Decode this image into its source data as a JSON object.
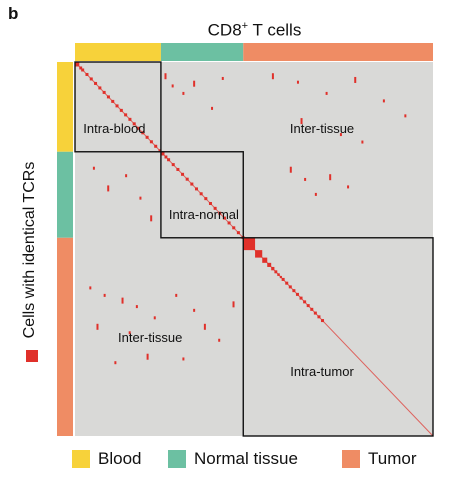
{
  "panel_letter": "b",
  "title_main": "CD8",
  "title_sup": "+",
  "title_rest": " T cells",
  "side_label": "Cells with identical TCRs",
  "colors": {
    "blood": "#f7d23a",
    "normal": "#6cc0a2",
    "tumor": "#ef8c64",
    "matrix_bg": "#d9d9d7",
    "clone": "#e0302a",
    "box": "#111111"
  },
  "legend": [
    {
      "label": "Blood",
      "color": "#f7d23a"
    },
    {
      "label": "Normal tissue",
      "color": "#6cc0a2"
    },
    {
      "label": "Tumor",
      "color": "#ef8c64"
    }
  ],
  "chart_data": {
    "type": "heatmap",
    "description_units": "fraction of total cells along each axis",
    "groups": [
      {
        "name": "Blood",
        "start": 0.0,
        "end": 0.24
      },
      {
        "name": "Normal tissue",
        "start": 0.24,
        "end": 0.47
      },
      {
        "name": "Tumor",
        "start": 0.47,
        "end": 1.0
      }
    ],
    "region_labels": [
      {
        "text": "Intra-blood",
        "x": 0.11,
        "y": 0.18
      },
      {
        "text": "Intra-normal",
        "x": 0.36,
        "y": 0.41
      },
      {
        "text": "Intra-tumor",
        "x": 0.69,
        "y": 0.83
      },
      {
        "text": "Inter-tissue",
        "x": 0.69,
        "y": 0.18
      },
      {
        "text": "Inter-tissue",
        "x": 0.21,
        "y": 0.74
      }
    ],
    "boxes": [
      {
        "from": 0.0,
        "to": 0.24
      },
      {
        "from": 0.24,
        "to": 0.47
      },
      {
        "from": 0.47,
        "to": 1.0
      }
    ],
    "large_clones": [
      {
        "pos": 0.0,
        "size": 0.012
      },
      {
        "pos": 0.012,
        "size": 0.008
      },
      {
        "pos": 0.24,
        "size": 0.01
      },
      {
        "pos": 0.25,
        "size": 0.008
      },
      {
        "pos": 0.47,
        "size": 0.033
      },
      {
        "pos": 0.503,
        "size": 0.02
      },
      {
        "pos": 0.523,
        "size": 0.014
      },
      {
        "pos": 0.537,
        "size": 0.011
      },
      {
        "pos": 0.548,
        "size": 0.009
      },
      {
        "pos": 0.557,
        "size": 0.008
      },
      {
        "pos": 0.565,
        "size": 0.007
      },
      {
        "pos": 0.572,
        "size": 0.006
      }
    ],
    "shared_clones": [
      [
        0.25,
        0.03
      ],
      [
        0.27,
        0.06
      ],
      [
        0.3,
        0.08
      ],
      [
        0.33,
        0.05
      ],
      [
        0.38,
        0.12
      ],
      [
        0.41,
        0.04
      ],
      [
        0.55,
        0.03
      ],
      [
        0.62,
        0.05
      ],
      [
        0.7,
        0.08
      ],
      [
        0.78,
        0.04
      ],
      [
        0.86,
        0.1
      ],
      [
        0.92,
        0.14
      ],
      [
        0.63,
        0.15
      ],
      [
        0.74,
        0.19
      ],
      [
        0.8,
        0.21
      ],
      [
        0.6,
        0.28
      ],
      [
        0.64,
        0.31
      ],
      [
        0.67,
        0.35
      ],
      [
        0.71,
        0.3
      ],
      [
        0.76,
        0.33
      ],
      [
        0.05,
        0.28
      ],
      [
        0.09,
        0.33
      ],
      [
        0.14,
        0.3
      ],
      [
        0.18,
        0.36
      ],
      [
        0.21,
        0.41
      ],
      [
        0.04,
        0.6
      ],
      [
        0.08,
        0.62
      ],
      [
        0.13,
        0.63
      ],
      [
        0.17,
        0.65
      ],
      [
        0.22,
        0.68
      ],
      [
        0.06,
        0.7
      ],
      [
        0.15,
        0.72
      ],
      [
        0.11,
        0.8
      ],
      [
        0.2,
        0.78
      ],
      [
        0.28,
        0.62
      ],
      [
        0.33,
        0.66
      ],
      [
        0.36,
        0.7
      ],
      [
        0.4,
        0.74
      ],
      [
        0.3,
        0.79
      ],
      [
        0.44,
        0.64
      ]
    ]
  }
}
